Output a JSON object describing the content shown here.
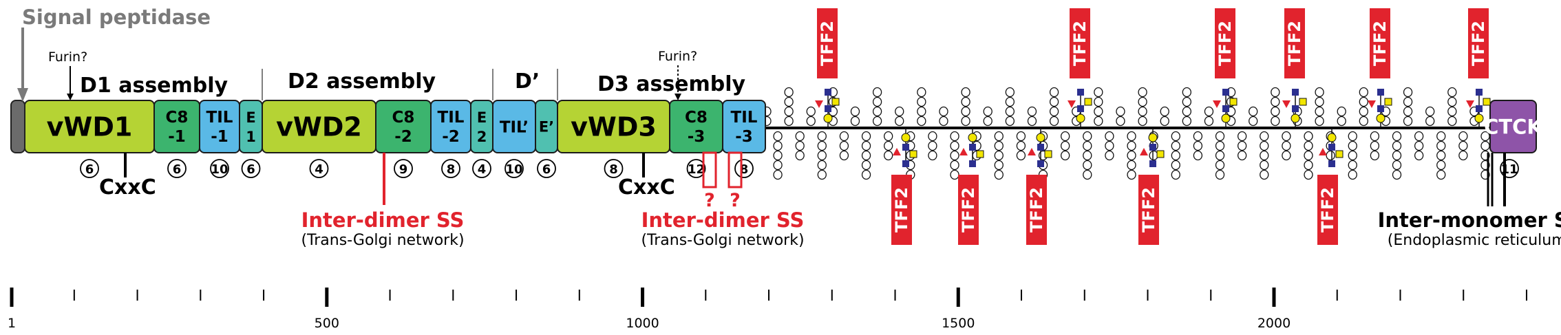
{
  "labels": {
    "signal_peptidase": "Signal peptidase",
    "furin1": "Furin?",
    "furin2": "Furin?",
    "d1_assembly": "D1 assembly",
    "d2_assembly": "D2 assembly",
    "d_prime": "D’",
    "d3_assembly": "D3 assembly",
    "cxxc1": "CxxC",
    "cxxc2": "CxxC",
    "inter_dimer_1": "Inter-dimer SS",
    "inter_dimer_1_sub": "(Trans-Golgi network)",
    "inter_dimer_2": "Inter-dimer SS",
    "inter_dimer_2_sub": "(Trans-Golgi network)",
    "inter_monomer": "Inter-monomer SS",
    "inter_monomer_sub": "(Endoplasmic reticulum)",
    "question": "?"
  },
  "domains": [
    {
      "label": "vWD1",
      "line2": "",
      "color": "#b5d334",
      "cysteines": "6"
    },
    {
      "label": "C8",
      "line2": "-1",
      "color": "#3cb46e",
      "cysteines": "6"
    },
    {
      "label": "TIL",
      "line2": "-1",
      "color": "#5ab9e6",
      "cysteines": "10"
    },
    {
      "label": "E",
      "line2": "1",
      "color": "#50c0b0",
      "cysteines": "6"
    },
    {
      "label": "vWD2",
      "line2": "",
      "color": "#b5d334",
      "cysteines": "4"
    },
    {
      "label": "C8",
      "line2": "-2",
      "color": "#3cb46e",
      "cysteines": "9"
    },
    {
      "label": "TIL",
      "line2": "-2",
      "color": "#5ab9e6",
      "cysteines": "8"
    },
    {
      "label": "E",
      "line2": "2",
      "color": "#50c0b0",
      "cysteines": "4"
    },
    {
      "label": "TIL’",
      "line2": "",
      "color": "#5ab9e6",
      "cysteines": "10"
    },
    {
      "label": "E’",
      "line2": "",
      "color": "#50c0b0",
      "cysteines": "6"
    },
    {
      "label": "vWD3",
      "line2": "",
      "color": "#b5d334",
      "cysteines": "8"
    },
    {
      "label": "C8",
      "line2": "-3",
      "color": "#3cb46e",
      "cysteines": "12"
    },
    {
      "label": "TIL",
      "line2": "-3",
      "color": "#5ab9e6",
      "cysteines": "8"
    },
    {
      "label": "CTCK",
      "line2": "",
      "color": "#8e54a8",
      "cysteines": "11"
    }
  ],
  "tff2": {
    "label": "TFF2",
    "label_color": "#e1232d"
  },
  "axis": {
    "min": 1,
    "max": 2400,
    "major_labels": [
      "1",
      "500",
      "1000",
      "1500",
      "2000"
    ],
    "major_values": [
      1,
      500,
      1000,
      1500,
      2000
    ],
    "minor_step": 100
  },
  "colors": {
    "red": "#e1232d",
    "grey": "#7a7a7a",
    "glycan_yellow": "#f2e600",
    "glycan_blue": "#2b2f8f",
    "fucose_red": "#e1232d"
  }
}
